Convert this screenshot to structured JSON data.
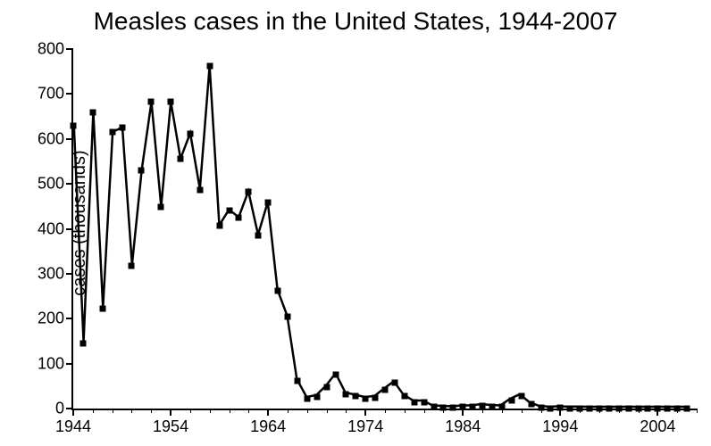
{
  "chart": {
    "type": "line",
    "title": "Measles cases in the United States, 1944-2007",
    "title_fontsize": 28,
    "ylabel": "cases (thousands)",
    "label_fontsize": 20,
    "tick_fontsize": 18,
    "background_color": "#ffffff",
    "axis_color": "#000000",
    "line_color": "#000000",
    "line_width": 2.5,
    "marker_color": "#000000",
    "marker_shape": "square",
    "marker_size": 7,
    "xlim": [
      1944,
      2008
    ],
    "ylim": [
      0,
      800
    ],
    "xticks_major": [
      1944,
      1954,
      1964,
      1974,
      1984,
      1994,
      2004
    ],
    "xtick_minor_step": 2,
    "yticks": [
      0,
      100,
      200,
      300,
      400,
      500,
      600,
      700,
      800
    ],
    "years": [
      1944,
      1945,
      1946,
      1947,
      1948,
      1949,
      1950,
      1951,
      1952,
      1953,
      1954,
      1955,
      1956,
      1957,
      1958,
      1959,
      1960,
      1961,
      1962,
      1963,
      1964,
      1965,
      1966,
      1967,
      1968,
      1969,
      1970,
      1971,
      1972,
      1973,
      1974,
      1975,
      1976,
      1977,
      1978,
      1979,
      1980,
      1981,
      1982,
      1983,
      1984,
      1985,
      1986,
      1987,
      1988,
      1989,
      1990,
      1991,
      1992,
      1993,
      1994,
      1995,
      1996,
      1997,
      1998,
      1999,
      2000,
      2001,
      2002,
      2003,
      2004,
      2005,
      2006,
      2007
    ],
    "values": [
      630,
      145,
      660,
      222,
      615,
      625,
      318,
      530,
      682,
      448,
      682,
      555,
      612,
      487,
      763,
      406,
      441,
      424,
      482,
      385,
      458,
      262,
      204,
      62,
      22,
      26,
      47,
      75,
      32,
      27,
      22,
      24,
      41,
      57,
      27,
      14,
      14,
      3,
      2,
      1,
      3,
      3,
      6,
      4,
      3,
      18,
      28,
      10,
      2,
      0.3,
      1,
      0.3,
      0.5,
      0.1,
      0.1,
      0.1,
      0.1,
      0.1,
      0.04,
      0.06,
      0.04,
      0.07,
      0.06,
      0.04
    ]
  }
}
